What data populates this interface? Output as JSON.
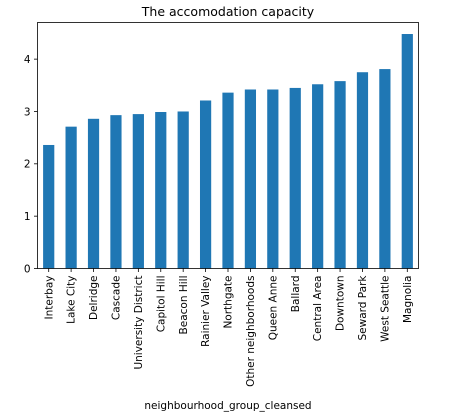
{
  "chart_data": {
    "type": "bar",
    "title": "The accomodation capacity",
    "xlabel": "neighbourhood_group_cleansed",
    "ylabel": "",
    "ylim": [
      0,
      4.7
    ],
    "yticks": [
      0,
      1,
      2,
      3,
      4
    ],
    "grid": false,
    "legend": "none",
    "bar_color": "#1f77b4",
    "categories": [
      "Interbay",
      "Lake City",
      "Delridge",
      "Cascade",
      "University District",
      "Capitol Hill",
      "Beacon Hill",
      "Rainier Valley",
      "Northgate",
      "Other neighborhoods",
      "Queen Anne",
      "Ballard",
      "Central Area",
      "Downtown",
      "Seward Park",
      "West Seattle",
      "Magnolia"
    ],
    "values": [
      2.36,
      2.71,
      2.86,
      2.93,
      2.95,
      2.99,
      3.0,
      3.21,
      3.36,
      3.42,
      3.42,
      3.45,
      3.52,
      3.58,
      3.75,
      3.81,
      4.48
    ]
  }
}
